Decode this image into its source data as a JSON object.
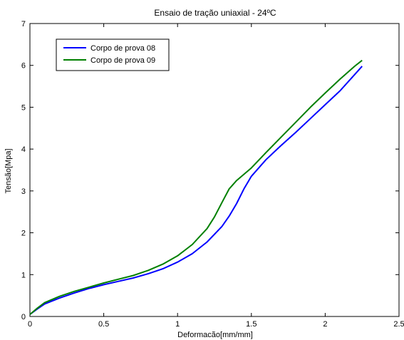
{
  "chart_data": {
    "type": "line",
    "title": "Ensaio de tração uniaxial - 24ºC",
    "xlabel": "Deformacão[mm/mm]",
    "ylabel": "Tensão[Mpa]",
    "xlim": [
      0,
      2.5
    ],
    "ylim": [
      0,
      7
    ],
    "xticks": [
      0,
      0.5,
      1,
      1.5,
      2,
      2.5
    ],
    "xtick_labels": [
      "0",
      "0.5",
      "1",
      "1.5",
      "2",
      "2.5"
    ],
    "yticks": [
      0,
      1,
      2,
      3,
      4,
      5,
      6,
      7
    ],
    "ytick_labels": [
      "0",
      "1",
      "2",
      "3",
      "4",
      "5",
      "6",
      "7"
    ],
    "grid": false,
    "legend_position": "top-left",
    "series": [
      {
        "name": "Corpo de prova 08",
        "color": "#0000ff",
        "x": [
          0,
          0.05,
          0.1,
          0.2,
          0.3,
          0.4,
          0.5,
          0.6,
          0.7,
          0.8,
          0.9,
          1.0,
          1.1,
          1.2,
          1.3,
          1.35,
          1.4,
          1.45,
          1.5,
          1.6,
          1.7,
          1.8,
          1.9,
          2.0,
          2.1,
          2.2,
          2.25
        ],
        "y": [
          0.05,
          0.18,
          0.3,
          0.44,
          0.56,
          0.67,
          0.76,
          0.84,
          0.92,
          1.02,
          1.14,
          1.3,
          1.5,
          1.78,
          2.15,
          2.4,
          2.7,
          3.05,
          3.35,
          3.75,
          4.08,
          4.4,
          4.73,
          5.06,
          5.39,
          5.78,
          5.98
        ]
      },
      {
        "name": "Corpo de prova 09",
        "color": "#008000",
        "x": [
          0,
          0.05,
          0.1,
          0.2,
          0.3,
          0.4,
          0.5,
          0.6,
          0.7,
          0.8,
          0.9,
          1.0,
          1.1,
          1.2,
          1.25,
          1.3,
          1.35,
          1.4,
          1.5,
          1.6,
          1.7,
          1.8,
          1.9,
          2.0,
          2.1,
          2.2,
          2.25
        ],
        "y": [
          0.05,
          0.2,
          0.33,
          0.48,
          0.6,
          0.7,
          0.8,
          0.89,
          0.98,
          1.1,
          1.25,
          1.45,
          1.72,
          2.1,
          2.38,
          2.72,
          3.05,
          3.25,
          3.55,
          3.92,
          4.28,
          4.64,
          5.0,
          5.34,
          5.67,
          5.98,
          6.12
        ]
      }
    ]
  }
}
